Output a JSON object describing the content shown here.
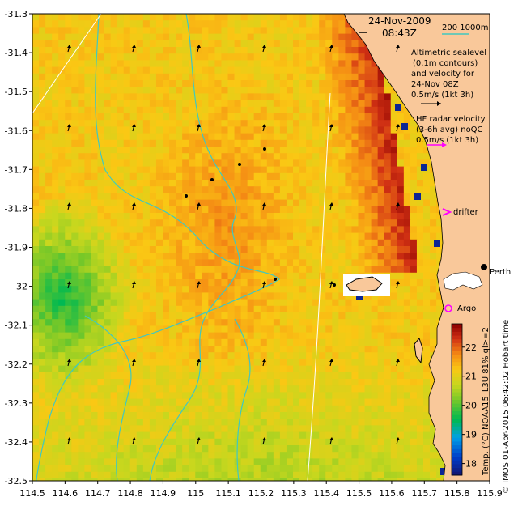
{
  "header": {
    "date": "24-Nov-2009",
    "time": "08:43Z",
    "scale_label": "200  1000m"
  },
  "legend": {
    "altimetry_lines": [
      "Altimetric sealevel",
      "(0.1m contours)",
      "and velocity for",
      "24-Nov 08Z",
      "0.5m/s (1kt 3h)"
    ],
    "hf_lines": [
      "HF radar velocity",
      "(3-6h avg) noQC",
      "0.5m/s (1kt 3h)"
    ],
    "drifter_label": "drifter",
    "argo_label": "Argo",
    "city_label": "Perth"
  },
  "colorbar": {
    "title": "Temp. (°C) NOAA15_L3U 81% ql>=2",
    "ticks": [
      "18",
      "19",
      "20",
      "21",
      "22"
    ],
    "range": [
      17.6,
      22.8
    ]
  },
  "credit": "© IMOS 01-Apr-2015 06:42:02 Hobart time",
  "colors": {
    "land": "#f9c89a",
    "contour": "#40c8c0",
    "drifter": "#ff00ff",
    "argo": "#ff00ff"
  },
  "chart_data": {
    "type": "heatmap",
    "xlim": [
      114.5,
      115.9
    ],
    "ylim": [
      -32.5,
      -31.3
    ],
    "x_ticks": [
      "114.5",
      "114.6",
      "114.7",
      "114.8",
      "114.9",
      "115",
      "115.1",
      "115.2",
      "115.3",
      "115.4",
      "115.5",
      "115.6",
      "115.7",
      "115.8",
      "115.9"
    ],
    "y_ticks": [
      "-31.3",
      "-31.4",
      "-31.5",
      "-31.6",
      "-31.7",
      "-31.8",
      "-31.9",
      "-32",
      "-32.1",
      "-32.2",
      "-32.3",
      "-32.4",
      "-32.5"
    ]
  }
}
